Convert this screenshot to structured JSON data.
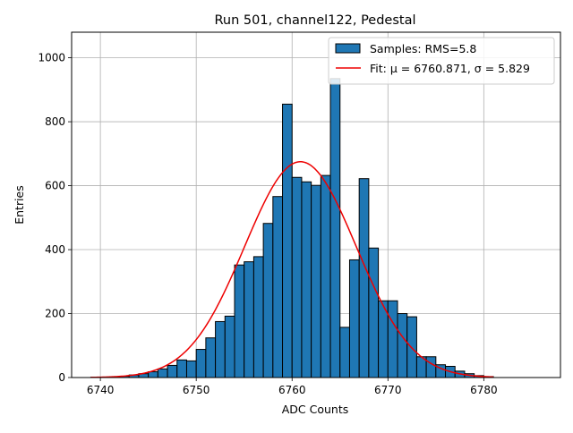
{
  "chart_data": {
    "type": "bar",
    "title": "Run 501, channel122, Pedestal",
    "xlabel": "ADC Counts",
    "ylabel": "Entries",
    "xlim": [
      6737,
      6788
    ],
    "ylim": [
      0,
      1080
    ],
    "xticks": [
      6740,
      6750,
      6760,
      6770,
      6780
    ],
    "yticks": [
      0,
      200,
      400,
      600,
      800,
      1000
    ],
    "grid": true,
    "legend_position": "top-right",
    "histogram": {
      "name": "Samples: RMS=5.8",
      "color": "#1f77b4",
      "bin_width": 1,
      "bin_starts": [
        6739,
        6740,
        6741,
        6742,
        6743,
        6744,
        6745,
        6746,
        6747,
        6748,
        6749,
        6750,
        6751,
        6752,
        6753,
        6754,
        6755,
        6756,
        6757,
        6758,
        6759,
        6760,
        6761,
        6762,
        6763,
        6764,
        6765,
        6766,
        6767,
        6768,
        6769,
        6770,
        6771,
        6772,
        6773,
        6774,
        6775,
        6776,
        6777,
        6778,
        6779,
        6780
      ],
      "counts": [
        1,
        1,
        2,
        4,
        8,
        12,
        18,
        27,
        38,
        55,
        52,
        88,
        124,
        175,
        192,
        352,
        362,
        378,
        482,
        566,
        855,
        626,
        612,
        601,
        632,
        935,
        157,
        368,
        622,
        405,
        240,
        240,
        200,
        190,
        65,
        65,
        40,
        35,
        20,
        12,
        6,
        3
      ]
    },
    "fit": {
      "name": "Fit: μ = 6760.871, σ = 5.829",
      "color": "#ee0000",
      "mu": 6760.871,
      "sigma": 5.829,
      "amplitude": 675,
      "x_range": [
        6739,
        6781
      ]
    }
  }
}
